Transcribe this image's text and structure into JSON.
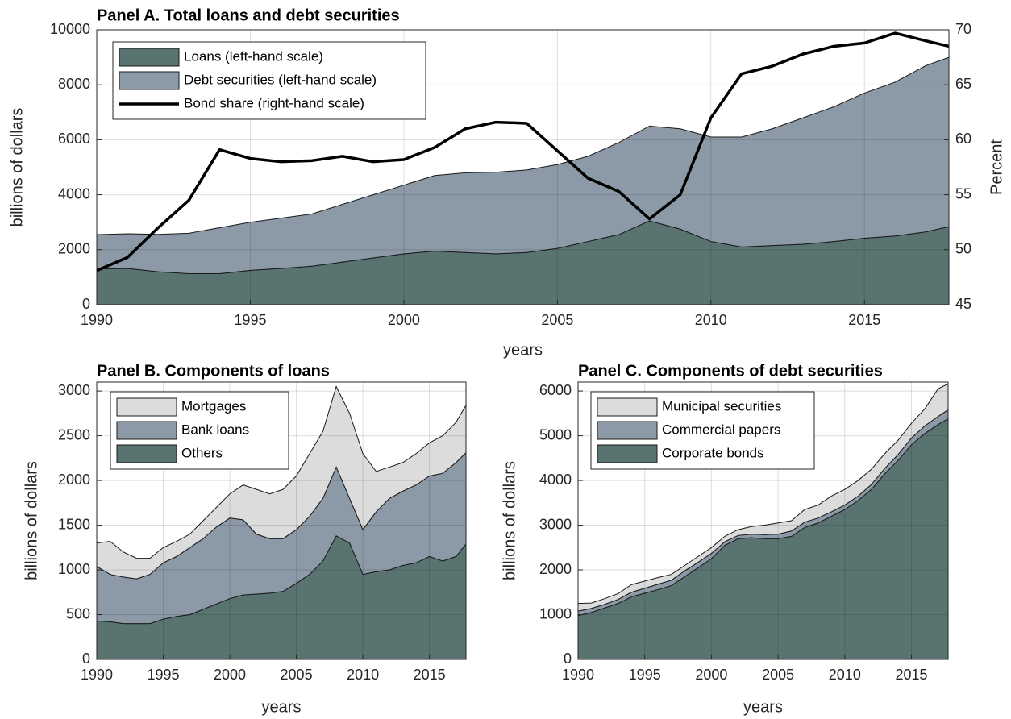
{
  "chart_data": [
    {
      "type": "area",
      "title": "Panel A. Total loans and debt securities",
      "xlabel": "years",
      "ylabel": "billions of dollars",
      "y2label": "Percent",
      "x": [
        1990,
        1991,
        1992,
        1993,
        1994,
        1995,
        1996,
        1997,
        1998,
        1999,
        2000,
        2001,
        2002,
        2003,
        2004,
        2005,
        2006,
        2007,
        2008,
        2009,
        2010,
        2011,
        2012,
        2013,
        2014,
        2015,
        2016,
        2017,
        2017.75
      ],
      "series": [
        {
          "name": "Loans (left-hand scale)",
          "color": "#587370",
          "values": [
            1300,
            1320,
            1200,
            1130,
            1130,
            1250,
            1320,
            1400,
            1550,
            1700,
            1850,
            1950,
            1900,
            1850,
            1900,
            2050,
            2300,
            2550,
            3050,
            2750,
            2300,
            2100,
            2150,
            2200,
            2300,
            2420,
            2500,
            2650,
            2840
          ]
        },
        {
          "name": "Debt securities (left-hand scale)",
          "color": "#8c99a6",
          "values": [
            1250,
            1260,
            1360,
            1470,
            1670,
            1750,
            1830,
            1900,
            2100,
            2300,
            2500,
            2750,
            2900,
            2970,
            3000,
            3050,
            3100,
            3350,
            3450,
            3650,
            3800,
            4000,
            4250,
            4600,
            4900,
            5280,
            5600,
            6050,
            6160
          ]
        },
        {
          "name": "Bond share (right-hand scale)",
          "type": "line",
          "axis": "y2",
          "color": "#000000",
          "values": [
            48.1,
            49.3,
            52.0,
            54.5,
            59.1,
            58.3,
            58.0,
            58.1,
            58.5,
            58.0,
            58.2,
            59.3,
            61.0,
            61.6,
            61.5,
            59.0,
            56.5,
            55.3,
            52.8,
            55.0,
            62.0,
            66.0,
            66.7,
            67.8,
            68.5,
            68.8,
            69.7,
            69.0,
            68.5
          ]
        }
      ],
      "xlim": [
        1990,
        2017.75
      ],
      "xticks": [
        1990,
        1995,
        2000,
        2005,
        2010,
        2015
      ],
      "ylim": [
        0,
        10000
      ],
      "yticks": [
        0,
        2000,
        4000,
        6000,
        8000,
        10000
      ],
      "y2lim": [
        45,
        70
      ],
      "y2ticks": [
        45,
        50,
        55,
        60,
        65,
        70
      ],
      "grid": true,
      "legend": "upper left"
    },
    {
      "type": "area",
      "title": "Panel B. Components of loans",
      "xlabel": "years",
      "ylabel": "billions of dollars",
      "x": [
        1990,
        1991,
        1992,
        1993,
        1994,
        1995,
        1996,
        1997,
        1998,
        1999,
        2000,
        2001,
        2002,
        2003,
        2004,
        2005,
        2006,
        2007,
        2008,
        2009,
        2010,
        2011,
        2012,
        2013,
        2014,
        2015,
        2016,
        2017,
        2017.75
      ],
      "series": [
        {
          "name": "Others",
          "color": "#587370",
          "values": [
            430,
            420,
            400,
            400,
            400,
            450,
            480,
            500,
            560,
            620,
            680,
            720,
            730,
            740,
            760,
            850,
            950,
            1100,
            1380,
            1300,
            950,
            980,
            1000,
            1050,
            1080,
            1150,
            1100,
            1150,
            1290
          ]
        },
        {
          "name": "Bank loans",
          "color": "#8c99a6",
          "values": [
            610,
            530,
            520,
            500,
            550,
            630,
            670,
            750,
            790,
            860,
            900,
            840,
            670,
            610,
            590,
            600,
            650,
            700,
            770,
            500,
            500,
            670,
            800,
            830,
            870,
            900,
            980,
            1050,
            1020
          ]
        },
        {
          "name": "Mortgages",
          "color": "#dcdcdc",
          "values": [
            260,
            370,
            280,
            230,
            180,
            170,
            170,
            150,
            200,
            220,
            270,
            390,
            500,
            500,
            550,
            600,
            700,
            750,
            900,
            950,
            850,
            450,
            350,
            320,
            350,
            370,
            420,
            450,
            530
          ]
        }
      ],
      "xlim": [
        1990,
        2017.75
      ],
      "xticks": [
        1990,
        1995,
        2000,
        2005,
        2010,
        2015
      ],
      "ylim": [
        0,
        3100
      ],
      "yticks": [
        0,
        500,
        1000,
        1500,
        2000,
        2500,
        3000
      ],
      "grid": true,
      "legend": "upper left",
      "legend_order": "reversed"
    },
    {
      "type": "area",
      "title": "Panel C. Components of debt securities",
      "xlabel": "years",
      "ylabel": "billions of dollars",
      "x": [
        1990,
        1991,
        1992,
        1993,
        1994,
        1995,
        1996,
        1997,
        1998,
        1999,
        2000,
        2001,
        2002,
        2003,
        2004,
        2005,
        2006,
        2007,
        2008,
        2009,
        2010,
        2011,
        2012,
        2013,
        2014,
        2015,
        2016,
        2017,
        2017.75
      ],
      "series": [
        {
          "name": "Corporate bonds",
          "color": "#587370",
          "values": [
            980,
            1050,
            1150,
            1250,
            1400,
            1480,
            1560,
            1650,
            1850,
            2050,
            2250,
            2550,
            2700,
            2720,
            2700,
            2700,
            2750,
            2950,
            3050,
            3200,
            3350,
            3550,
            3800,
            4150,
            4450,
            4800,
            5050,
            5250,
            5380
          ]
        },
        {
          "name": "Commercial papers",
          "color": "#8c99a6",
          "values": [
            100,
            90,
            80,
            90,
            100,
            110,
            120,
            120,
            130,
            120,
            120,
            80,
            70,
            80,
            90,
            100,
            120,
            120,
            110,
            100,
            100,
            100,
            110,
            120,
            130,
            150,
            170,
            180,
            200
          ]
        },
        {
          "name": "Municipal securities",
          "color": "#dcdcdc",
          "values": [
            170,
            120,
            130,
            130,
            170,
            160,
            150,
            130,
            120,
            130,
            130,
            120,
            130,
            170,
            210,
            250,
            230,
            280,
            290,
            350,
            350,
            350,
            340,
            330,
            320,
            330,
            380,
            620,
            580
          ]
        }
      ],
      "xlim": [
        1990,
        2017.75
      ],
      "xticks": [
        1990,
        1995,
        2000,
        2005,
        2010,
        2015
      ],
      "ylim": [
        0,
        6200
      ],
      "yticks": [
        0,
        1000,
        2000,
        3000,
        4000,
        5000,
        6000
      ],
      "grid": true,
      "legend": "upper left",
      "legend_order": "reversed"
    }
  ]
}
